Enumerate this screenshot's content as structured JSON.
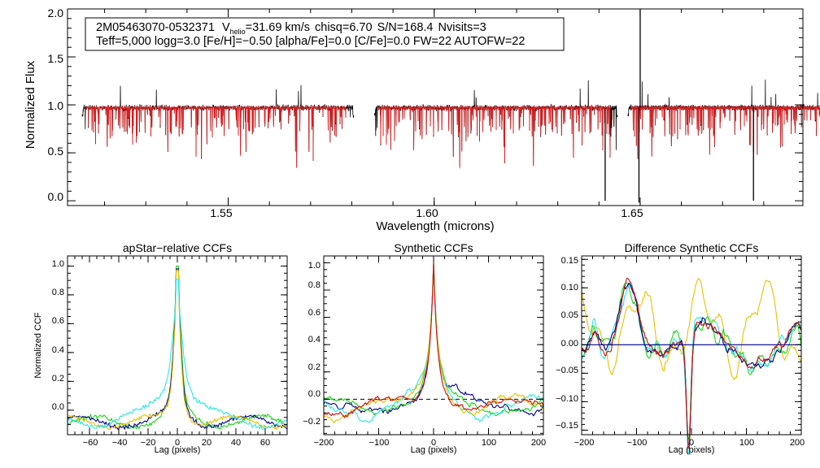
{
  "info_box": {
    "star_id": "2M05463070-0532371",
    "vhelio_symbol": "V",
    "vhelio_subscript": "helio",
    "vhelio_value": "=31.69 km/s",
    "chisq": "chisq=6.70",
    "snr": "S/N=168.4",
    "nvisits": "Nvisits=3",
    "line2": "Teff=5,000 logg=3.0 [Fe/H]=−0.50 [alpha/Fe]=0.0 [C/Fe]=0.0 FW=22 AUTOFW=22"
  },
  "colors": {
    "observed": "#000000",
    "model": "#e41a1c",
    "green": "#1fd11f",
    "cyan": "#2ee6e6",
    "navy": "#000088",
    "yellow": "#e6c200",
    "red": "#cc1111",
    "zero_line": "#000080"
  },
  "chart_data": [
    {
      "type": "line",
      "title": "",
      "xlabel": "Wavelength (microns)",
      "ylabel": "Normalized Flux",
      "xlim": [
        1.511,
        1.6895
      ],
      "ylim": [
        -0.05,
        2.0
      ],
      "xticks": [
        "1.55",
        "1.60",
        "1.65"
      ],
      "yticks": [
        "0.0",
        "0.5",
        "1.0",
        "1.5",
        "2.0"
      ],
      "chips": [
        [
          1.5145,
          1.5805
        ],
        [
          1.5855,
          1.6445
        ],
        [
          1.647,
          1.6955
        ]
      ],
      "series": [
        {
          "name": "observed",
          "continuum": 0.97
        },
        {
          "name": "model",
          "continuum": 0.97
        }
      ],
      "spikes": [
        {
          "x": 1.65,
          "y": 2.0
        },
        {
          "x": 1.6497,
          "y": -0.02
        },
        {
          "x": 1.6415,
          "y": 0.0
        },
        {
          "x": 1.6775,
          "y": 0.0
        }
      ]
    },
    {
      "type": "line",
      "title": "apStar−relative CCFs",
      "xlabel": "Lag (pixels)",
      "ylabel": "Normalized CCF",
      "xlim": [
        -75,
        75
      ],
      "ylim": [
        -0.17,
        1.07
      ],
      "xticks": [
        "−60",
        "−40",
        "−20",
        "0",
        "20",
        "40",
        "60"
      ],
      "yticks": [
        "0.0",
        "0.2",
        "0.4",
        "0.6",
        "0.8",
        "1.0"
      ],
      "series": [
        {
          "name": "green",
          "peak": 1.0,
          "width": 4
        },
        {
          "name": "navy",
          "peak": 0.98,
          "width": 4
        },
        {
          "name": "yellow",
          "peak": 0.97,
          "width": 4
        },
        {
          "name": "cyan",
          "peak": 0.91,
          "width": 9
        }
      ]
    },
    {
      "type": "line",
      "title": "Synthetic CCFs",
      "xlabel": "Lag (pixels)",
      "ylabel": "",
      "xlim": [
        -200,
        200
      ],
      "ylim": [
        -0.26,
        1.05
      ],
      "xticks": [
        "−200",
        "−100",
        "0",
        "100",
        "200"
      ],
      "yticks": [
        "−0.2",
        "0.0",
        "0.2",
        "0.4",
        "0.6",
        "0.8",
        "1.0"
      ],
      "zero_line": 0.0,
      "series": [
        {
          "name": "navy",
          "peak": 1.0
        },
        {
          "name": "green",
          "peak": 1.0
        },
        {
          "name": "cyan",
          "peak": 1.0
        },
        {
          "name": "yellow",
          "peak": 1.0
        },
        {
          "name": "red",
          "peak": 1.0
        }
      ]
    },
    {
      "type": "line",
      "title": "Difference Synthetic CCFs",
      "xlabel": "Lag (pixels)",
      "ylabel": "",
      "xlim": [
        -200,
        200
      ],
      "ylim": [
        -0.158,
        0.156
      ],
      "xticks": [
        "−200",
        "−100",
        "0",
        "100",
        "200"
      ],
      "yticks": [
        "−0.15",
        "−0.10",
        "−0.05",
        "0.00",
        "0.05",
        "0.10",
        "0.15"
      ],
      "zero_line": 0.0,
      "series": [
        {
          "name": "yellow"
        },
        {
          "name": "green"
        },
        {
          "name": "cyan"
        },
        {
          "name": "navy"
        },
        {
          "name": "red"
        }
      ]
    }
  ]
}
